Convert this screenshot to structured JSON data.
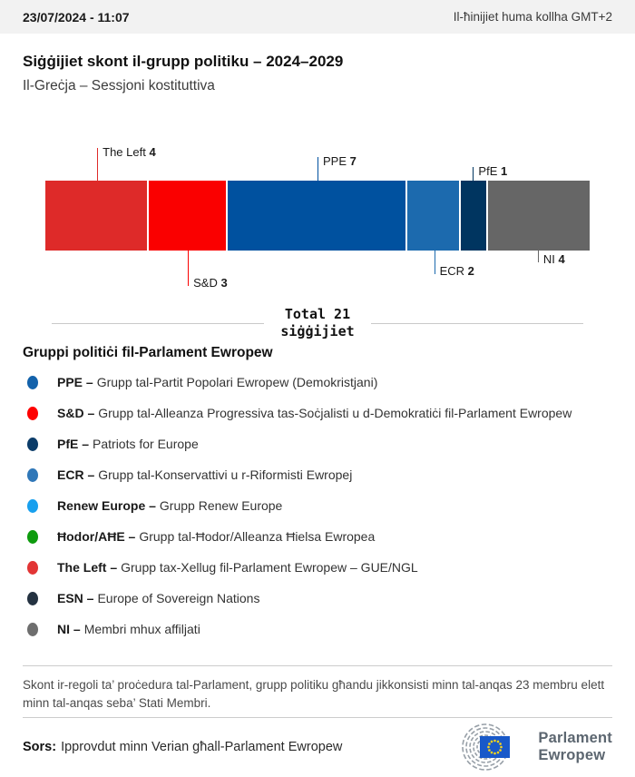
{
  "header": {
    "datetime": "23/07/2024 - 11:07",
    "timezone_note": "Il-ħinijiet huma kollha GMT+2"
  },
  "page": {
    "title": "Siġġijiet skont il-grupp politiku – 2024–2029",
    "subtitle": "Il-Greċja – Sessjoni kostituttiva"
  },
  "chart_data": {
    "type": "bar",
    "variant": "horizontal-stacked-seat-bar",
    "title": "Siġġijiet skont il-grupp politiku – 2024–2029",
    "region": "Il-Greċja",
    "session": "Sessjoni kostituttiva",
    "total_seats": 21,
    "total_label_line1": "Total 21",
    "total_label_line2": "siġġijiet",
    "segments": [
      {
        "name": "The Left",
        "seats": 4,
        "color": "#DE2A29",
        "label_side": "above",
        "callout_len": 36
      },
      {
        "name": "S&D",
        "seats": 3,
        "color": "#FA0000",
        "label_side": "below",
        "callout_len": 39
      },
      {
        "name": "PPE",
        "seats": 7,
        "color": "#00519F",
        "label_side": "above",
        "callout_len": 26
      },
      {
        "name": "ECR",
        "seats": 2,
        "color": "#1C6AAE",
        "label_side": "below",
        "callout_len": 26
      },
      {
        "name": "PfE",
        "seats": 1,
        "color": "#003560",
        "label_side": "above",
        "callout_len": 15
      },
      {
        "name": "NI",
        "seats": 4,
        "color": "#666666",
        "label_side": "below",
        "callout_len": 13
      }
    ]
  },
  "legend": {
    "heading": "Gruppi politiċi fil-Parlament Ewropew",
    "items": [
      {
        "abbr": "PPE –",
        "name": "Grupp tal-Partit Popolari Ewropew (Demokristjani)",
        "color": "#1362AB"
      },
      {
        "abbr": "S&D –",
        "name": "Grupp tal-Alleanza Progressiva tas-Soċjalisti u d-Demokratiċi fil-Parlament Ewropew",
        "color": "#FE0000"
      },
      {
        "abbr": "PfE –",
        "name": "Patriots for Europe",
        "color": "#0B3C69"
      },
      {
        "abbr": "ECR –",
        "name": "Grupp tal-Konservattivi u r-Riformisti Ewropej",
        "color": "#2F77B8"
      },
      {
        "abbr": "Renew Europe –",
        "name": "Grupp Renew Europe",
        "color": "#18A0EE"
      },
      {
        "abbr": "Ħodor/AĦE –",
        "name": "Grupp tal-Ħodor/Alleanza Ħielsa Ewropea",
        "color": "#0E9B0E"
      },
      {
        "abbr": "The Left –",
        "name": "Grupp tax-Xellug fil-Parlament Ewropew – GUE/NGL",
        "color": "#E23535"
      },
      {
        "abbr": "ESN –",
        "name": "Europe of Sovereign Nations",
        "color": "#243241"
      },
      {
        "abbr": "NI –",
        "name": "Membri mhux affiljati",
        "color": "#6E6E6E"
      }
    ]
  },
  "footnote": "Skont ir-regoli ta’ proċedura tal-Parlament, grupp politiku għandu jikkonsisti minn tal-anqas 23 membru elett minn tal-anqas seba’ Stati Membri.",
  "source": {
    "label": "Sors:",
    "text": "Ipprovdut minn Verian għall-Parlament Ewropew"
  },
  "logo": {
    "line1": "Parlament",
    "line2": "Ewropew",
    "arc_color": "#98A0A8",
    "flag_color": "#1959C9",
    "star_color": "#FFD617"
  }
}
